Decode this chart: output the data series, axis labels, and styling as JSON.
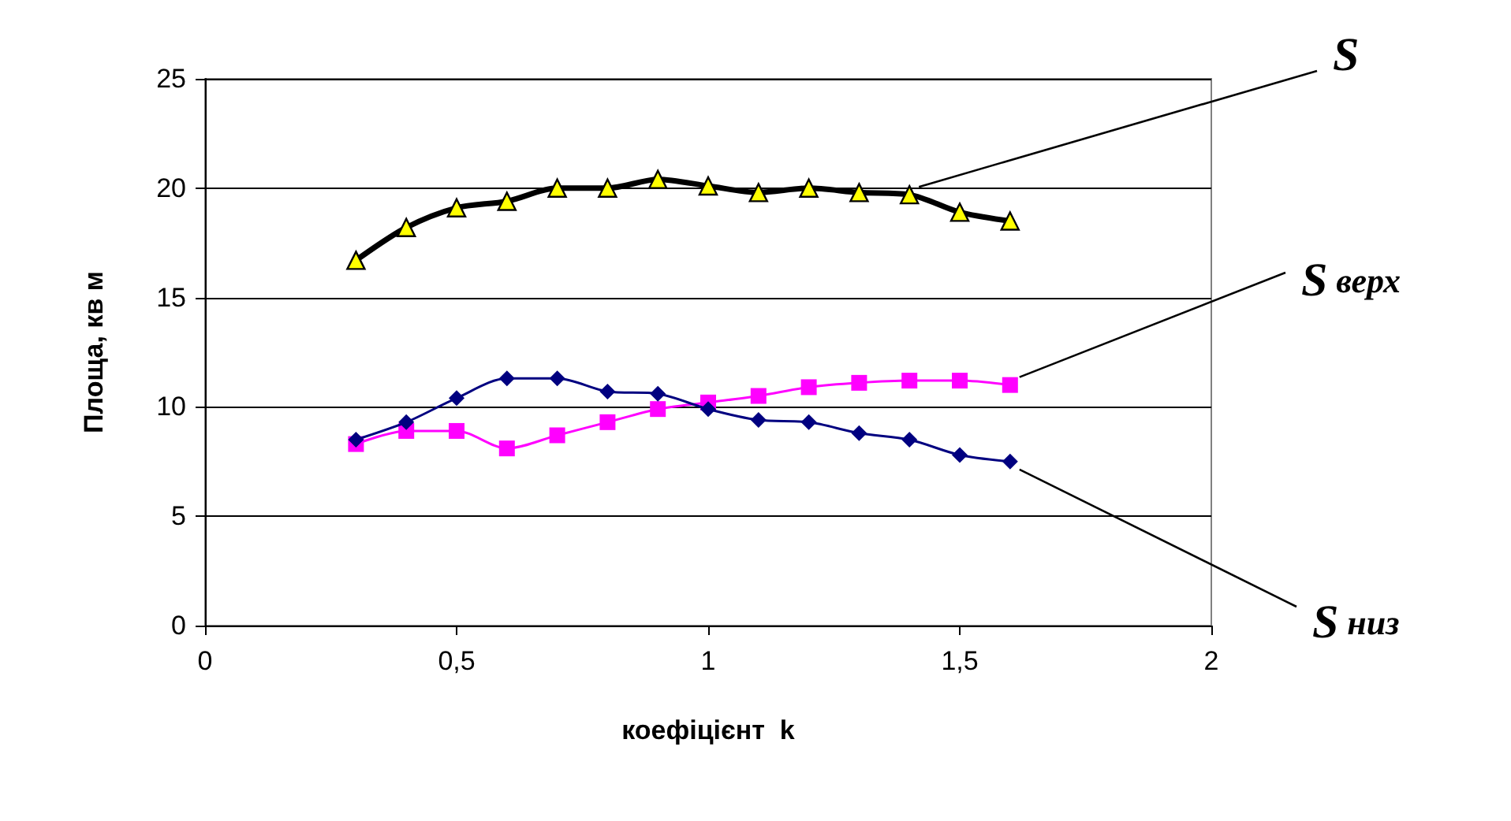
{
  "chart_data": {
    "type": "line",
    "xlabel": "коефіцієнт  k",
    "ylabel": "Площа, кв м",
    "x": [
      0.3,
      0.4,
      0.5,
      0.6,
      0.7,
      0.8,
      0.9,
      1.0,
      1.1,
      1.2,
      1.3,
      1.4,
      1.5,
      1.6
    ],
    "series": [
      {
        "name": "S",
        "color": "#000000",
        "marker": "triangle",
        "values": [
          16.7,
          18.2,
          19.1,
          19.4,
          20.0,
          20.0,
          20.4,
          20.1,
          19.8,
          20.0,
          19.8,
          19.7,
          18.9,
          18.5
        ]
      },
      {
        "name": "S верх",
        "color": "#ff00ff",
        "marker": "square",
        "values": [
          8.3,
          8.9,
          8.9,
          8.1,
          8.7,
          9.3,
          9.9,
          10.2,
          10.5,
          10.9,
          11.1,
          11.2,
          11.2,
          11.0
        ]
      },
      {
        "name": "S низ",
        "color": "#000080",
        "marker": "diamond",
        "values": [
          8.5,
          9.3,
          10.4,
          11.3,
          11.3,
          10.7,
          10.6,
          9.9,
          9.4,
          9.3,
          8.8,
          8.5,
          7.8,
          7.5
        ]
      }
    ],
    "xlim": [
      0,
      2
    ],
    "xticks": [
      0,
      {
        "value": 0.5,
        "label": "0,5"
      },
      1,
      {
        "value": 1.5,
        "label": "1,5"
      },
      2
    ],
    "ylim": [
      0,
      25
    ],
    "yticks": [
      0,
      5,
      10,
      15,
      20,
      25
    ],
    "grid": "y",
    "legend": false
  }
}
